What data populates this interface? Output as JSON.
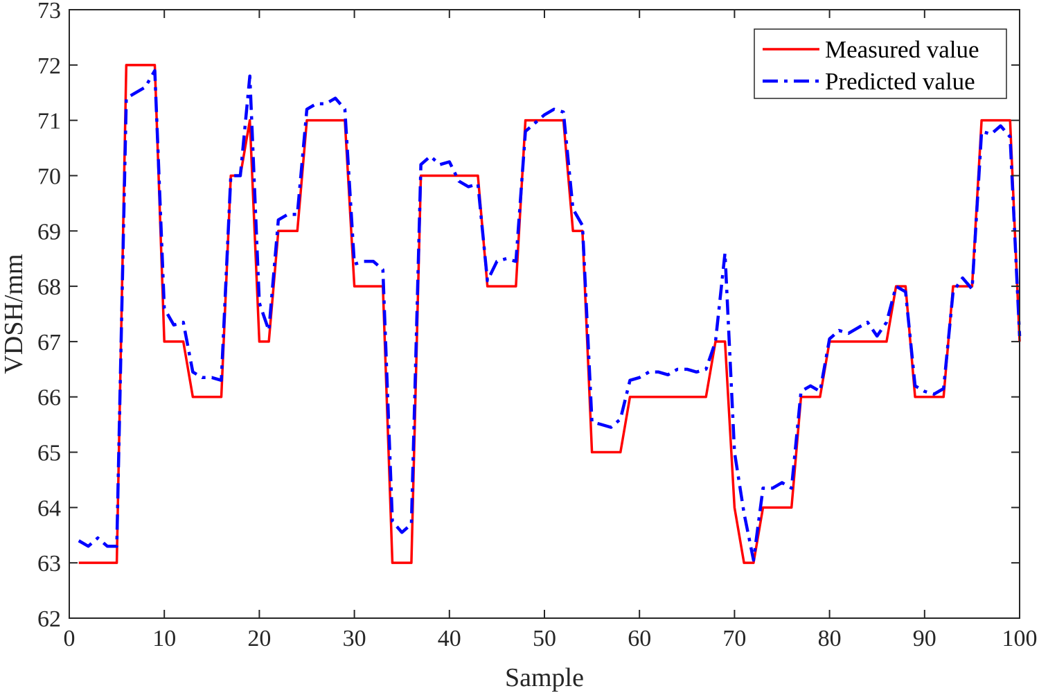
{
  "chart_data": {
    "type": "line",
    "xlabel": "Sample",
    "ylabel": "VDSH/mm",
    "xlim": [
      0,
      100
    ],
    "ylim": [
      62,
      73
    ],
    "xticks": [
      0,
      10,
      20,
      30,
      40,
      50,
      60,
      70,
      80,
      90,
      100
    ],
    "yticks": [
      62,
      63,
      64,
      65,
      66,
      67,
      68,
      69,
      70,
      71,
      72,
      73
    ],
    "grid": false,
    "legend_position": "top-right",
    "x": [
      1,
      2,
      3,
      4,
      5,
      6,
      7,
      8,
      9,
      10,
      11,
      12,
      13,
      14,
      15,
      16,
      17,
      18,
      19,
      20,
      21,
      22,
      23,
      24,
      25,
      26,
      27,
      28,
      29,
      30,
      31,
      32,
      33,
      34,
      35,
      36,
      37,
      38,
      39,
      40,
      41,
      42,
      43,
      44,
      45,
      46,
      47,
      48,
      49,
      50,
      51,
      52,
      53,
      54,
      55,
      56,
      57,
      58,
      59,
      60,
      61,
      62,
      63,
      64,
      65,
      66,
      67,
      68,
      69,
      70,
      71,
      72,
      73,
      74,
      75,
      76,
      77,
      78,
      79,
      80,
      81,
      82,
      83,
      84,
      85,
      86,
      87,
      88,
      89,
      90,
      91,
      92,
      93,
      94,
      95,
      96,
      97,
      98,
      99,
      100
    ],
    "series": [
      {
        "name": "Measured value",
        "color": "#ff0000",
        "style": "solid",
        "values": [
          63,
          63,
          63,
          63,
          63,
          72,
          72,
          72,
          72,
          67,
          67,
          67,
          66,
          66,
          66,
          66,
          70,
          70,
          71,
          67,
          67,
          69,
          69,
          69,
          71,
          71,
          71,
          71,
          71,
          68,
          68,
          68,
          68,
          63,
          63,
          63,
          70,
          70,
          70,
          70,
          70,
          70,
          70,
          68,
          68,
          68,
          68,
          71,
          71,
          71,
          71,
          71,
          69,
          69,
          65,
          65,
          65,
          65,
          66,
          66,
          66,
          66,
          66,
          66,
          66,
          66,
          66,
          67,
          67,
          64,
          63,
          63,
          64,
          64,
          64,
          64,
          66,
          66,
          66,
          67,
          67,
          67,
          67,
          67,
          67,
          67,
          68,
          68,
          66,
          66,
          66,
          66,
          68,
          68,
          68,
          71,
          71,
          71,
          71,
          67
        ]
      },
      {
        "name": "Predicted value",
        "color": "#0000ff",
        "style": "dashdot",
        "values": [
          63.4,
          63.3,
          63.45,
          63.3,
          63.3,
          71.4,
          71.5,
          71.6,
          71.9,
          67.6,
          67.3,
          67.35,
          66.45,
          66.35,
          66.35,
          66.3,
          70.0,
          70.0,
          71.8,
          67.7,
          67.2,
          69.2,
          69.3,
          69.3,
          71.2,
          71.3,
          71.3,
          71.4,
          71.2,
          68.4,
          68.45,
          68.45,
          68.3,
          63.75,
          63.55,
          63.7,
          70.2,
          70.35,
          70.2,
          70.25,
          69.9,
          69.8,
          69.85,
          68.1,
          68.45,
          68.5,
          68.45,
          70.8,
          70.95,
          71.1,
          71.2,
          71.15,
          69.4,
          69.1,
          65.55,
          65.5,
          65.45,
          65.6,
          66.3,
          66.35,
          66.45,
          66.45,
          66.4,
          66.5,
          66.5,
          66.45,
          66.5,
          67.0,
          68.6,
          65.0,
          63.9,
          63.05,
          64.35,
          64.35,
          64.45,
          64.35,
          66.1,
          66.2,
          66.1,
          67.05,
          67.2,
          67.15,
          67.25,
          67.35,
          67.1,
          67.35,
          68.0,
          67.9,
          66.2,
          66.1,
          66.05,
          66.15,
          67.9,
          68.15,
          67.95,
          70.8,
          70.75,
          70.9,
          70.7,
          67.1
        ]
      }
    ]
  }
}
